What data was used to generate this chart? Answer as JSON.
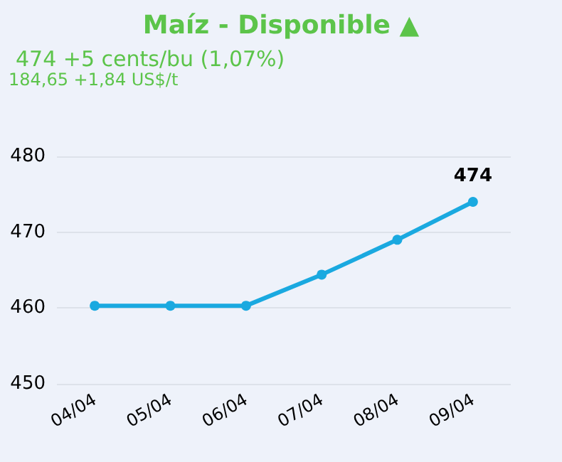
{
  "chart_data": {
    "type": "line",
    "title": "Maíz - Disponible ▲",
    "subtitle": "474 +5 cents/bu (1,07%)",
    "annotations": [
      "184,65 +1,84 US$/t"
    ],
    "categories": [
      "04/04",
      "05/04",
      "06/04",
      "07/04",
      "08/04",
      "09/04"
    ],
    "series": [
      {
        "color": "#1aa9e0",
        "values": [
          460.3,
          460.3,
          460.3,
          464.4,
          469,
          474
        ],
        "value_labels": [
          null,
          null,
          null,
          null,
          null,
          "474"
        ]
      }
    ],
    "ylim": [
      450,
      480
    ],
    "yticks": [
      450,
      460,
      470,
      480
    ],
    "grid": "y",
    "marker": "circle",
    "line_style": "solid"
  }
}
